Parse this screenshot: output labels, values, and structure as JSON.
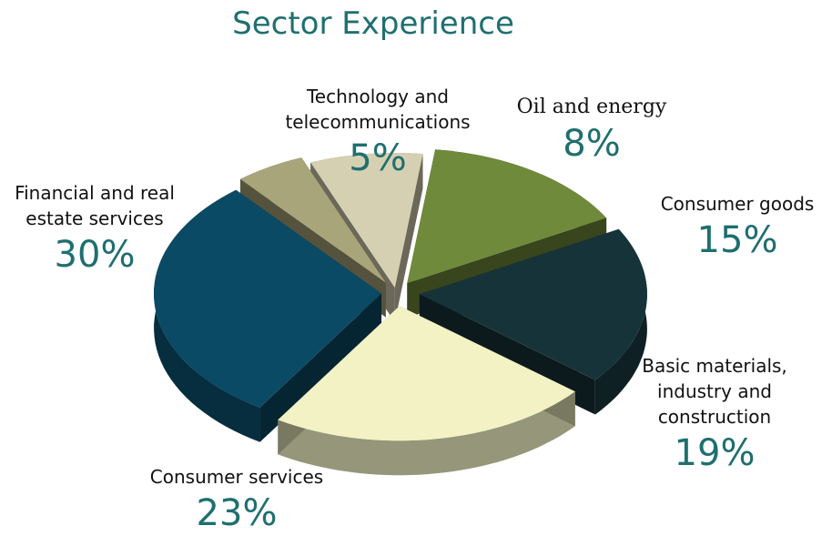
{
  "chart_data": {
    "type": "pie",
    "title": "Sector Experience",
    "slices": [
      {
        "label": "Oil and energy",
        "value": 8,
        "value_label": "8%",
        "color": "#d6d0b2"
      },
      {
        "label": "Consumer goods",
        "value": 15,
        "value_label": "15%",
        "color": "#6f8a3a"
      },
      {
        "label": "Basic materials, industry and construction",
        "value": 19,
        "value_label": "19%",
        "color": "#17333a"
      },
      {
        "label": "Consumer services",
        "value": 23,
        "value_label": "23%",
        "color": "#f2f2c4"
      },
      {
        "label": "Financial and real estate services",
        "value": 30,
        "value_label": "30%",
        "color": "#0b4a64"
      },
      {
        "label": "Technology and telecommunications",
        "value": 5,
        "value_label": "5%",
        "color": "#a9a57a"
      }
    ]
  }
}
